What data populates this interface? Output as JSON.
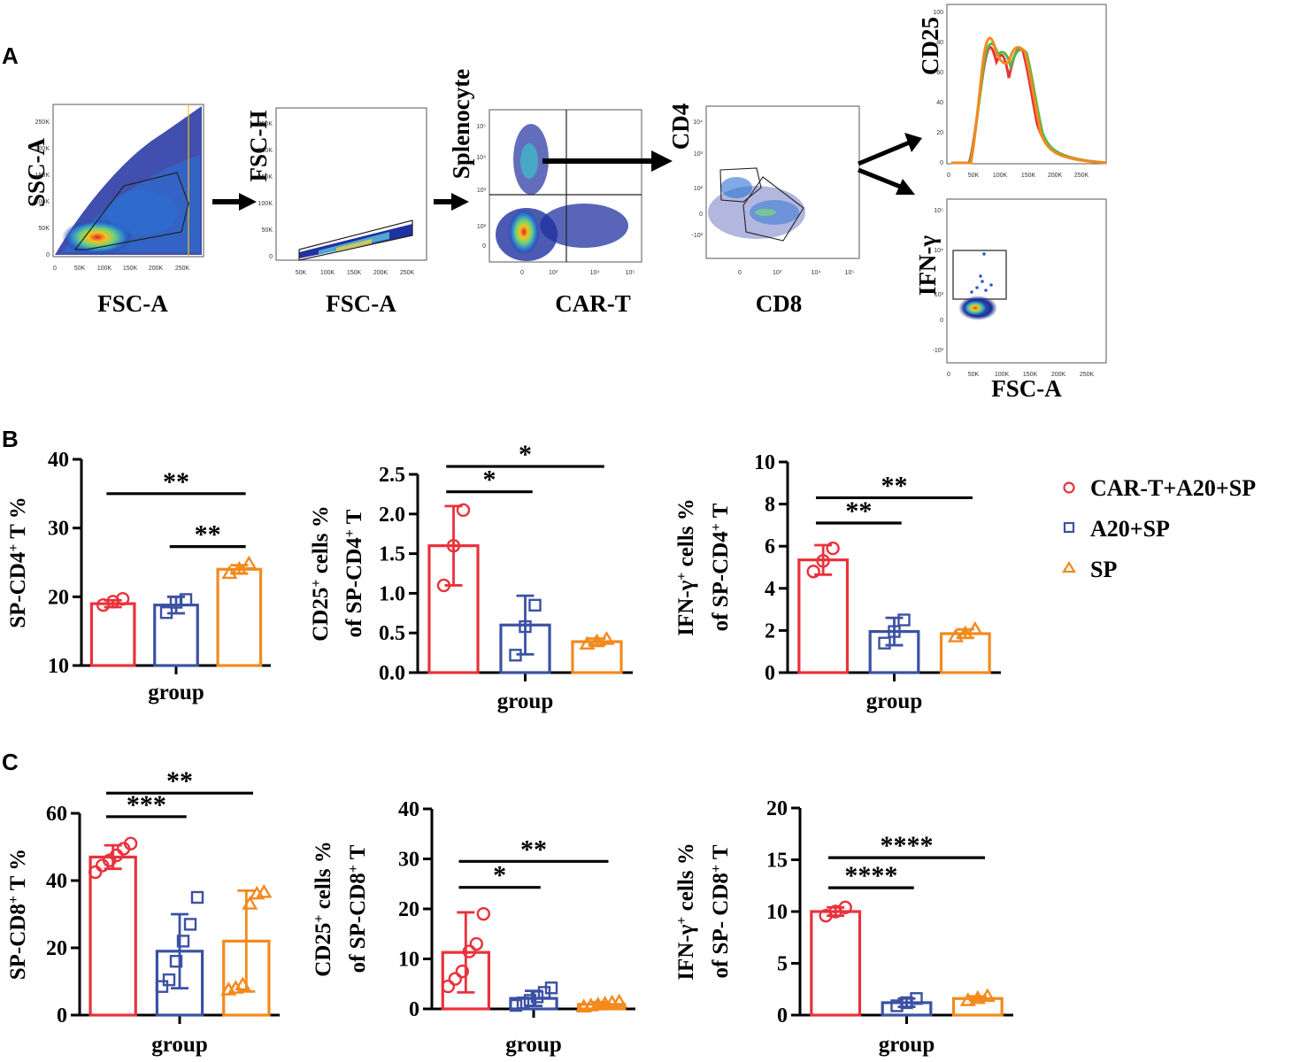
{
  "figure": {
    "panel_a_letter": "A",
    "panel_b_letter": "B",
    "panel_c_letter": "C"
  },
  "flow": {
    "p1": {
      "y_label": "SSC-A",
      "x_label": "FSC-A",
      "x_ticks": [
        "0",
        "50K",
        "100K",
        "150K",
        "200K",
        "250K"
      ],
      "y_ticks": [
        "0",
        "50K",
        "100K",
        "150K",
        "200K",
        "250K"
      ]
    },
    "p2": {
      "y_label": "FSC-H",
      "x_label": "FSC-A",
      "x_ticks": [
        "50K",
        "100K",
        "150K",
        "200K",
        "250K"
      ],
      "y_ticks": [
        "0",
        "50K",
        "100K",
        "150K",
        "200K",
        "250K"
      ]
    },
    "p3": {
      "y_label": "Splenocyte",
      "x_label": "CAR-T",
      "x_ticks": [
        "0",
        "10³",
        "10⁴",
        "10⁵"
      ],
      "y_ticks": [
        "0",
        "10²",
        "10³",
        "10⁴",
        "10⁵"
      ]
    },
    "p4": {
      "y_label": "CD4",
      "x_label": "CD8",
      "x_ticks": [
        "0",
        "10³",
        "10⁴",
        "10⁵"
      ],
      "y_ticks": [
        "-10²",
        "0",
        "10²",
        "10³",
        "10⁴"
      ]
    },
    "p5": {
      "y_label": "CD25",
      "x_ticks": [
        "0",
        "50K",
        "100K",
        "150K",
        "200K",
        "250K"
      ],
      "y_ticks": [
        "0",
        "20",
        "40",
        "60",
        "80",
        "100"
      ]
    },
    "p6": {
      "y_label": "IFN-γ",
      "x_label": "FSC-A",
      "x_ticks": [
        "0",
        "50K",
        "100K",
        "150K",
        "200K",
        "250K"
      ],
      "y_ticks": [
        "-10³",
        "0",
        "10³",
        "10⁴",
        "10⁵"
      ]
    }
  },
  "legend": {
    "items": [
      {
        "label": "CAR-T+A20+SP",
        "color": "#e8323c",
        "marker": "circle"
      },
      {
        "label": "A20+SP",
        "color": "#3b51a3",
        "marker": "square"
      },
      {
        "label": "SP",
        "color": "#f28a1d",
        "marker": "triangle"
      }
    ]
  },
  "chart_data": [
    {
      "id": "B1",
      "type": "bar",
      "xlabel": "group",
      "ylabel_main": "SP-CD4",
      "ylabel_sup": "+",
      "ylabel_tail": " T %",
      "ylim": [
        10,
        40
      ],
      "y_ticks": [
        10,
        20,
        30,
        40
      ],
      "series": [
        {
          "name": "CAR-T+A20+SP",
          "mean": 19.0,
          "sd": 0.5,
          "points": [
            18.8,
            19.3,
            19.7
          ]
        },
        {
          "name": "A20+SP",
          "mean": 18.8,
          "sd": 1.2,
          "points": [
            17.7,
            19.2,
            19.6
          ]
        },
        {
          "name": "SP",
          "mean": 24.0,
          "sd": 0.6,
          "points": [
            23.4,
            24.0,
            24.8
          ]
        }
      ],
      "sig": [
        {
          "from": 0,
          "to": 2,
          "label": "**",
          "level": 35
        },
        {
          "from": 1,
          "to": 2,
          "label": "**",
          "level": 27.3
        }
      ]
    },
    {
      "id": "B2",
      "type": "bar",
      "xlabel": "group",
      "ylabel_main": "CD25",
      "ylabel_sup": "+",
      "ylabel_tail": " cells %",
      "ylabel2_main": "of SP-CD4",
      "ylabel2_sup": "+",
      "ylabel2_tail": " T",
      "ylim": [
        0,
        2.5
      ],
      "y_ticks": [
        0.0,
        0.5,
        1.0,
        1.5,
        2.0,
        2.5
      ],
      "series": [
        {
          "name": "CAR-T+A20+SP",
          "mean": 1.6,
          "sd": 0.5,
          "points": [
            1.1,
            1.6,
            2.05
          ]
        },
        {
          "name": "A20+SP",
          "mean": 0.6,
          "sd": 0.37,
          "points": [
            0.22,
            0.58,
            0.85
          ]
        },
        {
          "name": "SP",
          "mean": 0.39,
          "sd": 0.04,
          "points": [
            0.36,
            0.39,
            0.42
          ]
        }
      ],
      "sig": [
        {
          "from": 0,
          "to": 2,
          "label": "*",
          "level": 2.6
        },
        {
          "from": 0,
          "to": 1,
          "label": "*",
          "level": 2.28
        }
      ]
    },
    {
      "id": "B3",
      "type": "bar",
      "xlabel": "group",
      "ylabel_main": "IFN-γ",
      "ylabel_sup": "+",
      "ylabel_tail": " cells %",
      "ylabel2_main": "of SP-CD4",
      "ylabel2_sup": "+",
      "ylabel2_tail": " T",
      "ylim": [
        0,
        10
      ],
      "y_ticks": [
        0,
        2,
        4,
        6,
        8,
        10
      ],
      "series": [
        {
          "name": "CAR-T+A20+SP",
          "mean": 5.35,
          "sd": 0.7,
          "points": [
            4.8,
            5.3,
            5.9
          ]
        },
        {
          "name": "A20+SP",
          "mean": 1.95,
          "sd": 0.65,
          "points": [
            1.4,
            1.95,
            2.5
          ]
        },
        {
          "name": "SP",
          "mean": 1.85,
          "sd": 0.2,
          "points": [
            1.7,
            1.85,
            2.05
          ]
        }
      ],
      "sig": [
        {
          "from": 0,
          "to": 2,
          "label": "**",
          "level": 8.3
        },
        {
          "from": 0,
          "to": 1,
          "label": "**",
          "level": 7.1
        }
      ]
    },
    {
      "id": "C1",
      "type": "bar",
      "xlabel": "group",
      "ylabel_main": "SP-CD8",
      "ylabel_sup": "+",
      "ylabel_tail": " T %",
      "ylim": [
        0,
        60
      ],
      "y_ticks": [
        0,
        20,
        40,
        60
      ],
      "series": [
        {
          "name": "CAR-T+A20+SP",
          "mean": 47,
          "sd": 3.5,
          "points": [
            42.5,
            44.5,
            46,
            47.5,
            49.5,
            51
          ]
        },
        {
          "name": "A20+SP",
          "mean": 19,
          "sd": 11,
          "points": [
            8.5,
            10.5,
            16,
            22,
            27,
            35
          ]
        },
        {
          "name": "SP",
          "mean": 22,
          "sd": 15,
          "points": [
            7.5,
            8,
            9,
            33,
            36,
            36.5
          ]
        }
      ],
      "sig": [
        {
          "from": 0,
          "to": 2,
          "label": "**",
          "level": 66
        },
        {
          "from": 0,
          "to": 1,
          "label": "***",
          "level": 59
        }
      ]
    },
    {
      "id": "C2",
      "type": "bar",
      "xlabel": "group",
      "ylabel_main": "CD25",
      "ylabel_sup": "+",
      "ylabel_tail": " cells %",
      "ylabel2_main": "of SP-CD8",
      "ylabel2_sup": "+",
      "ylabel2_tail": " T",
      "ylim": [
        0,
        40
      ],
      "y_ticks": [
        0,
        10,
        20,
        30,
        40
      ],
      "series": [
        {
          "name": "CAR-T+A20+SP",
          "mean": 11.3,
          "sd": 8,
          "points": [
            4.5,
            6,
            7.5,
            11.5,
            13,
            19
          ]
        },
        {
          "name": "A20+SP",
          "mean": 2.1,
          "sd": 1.5,
          "points": [
            0.7,
            1.2,
            1.7,
            2.4,
            3.3,
            4.2
          ]
        },
        {
          "name": "SP",
          "mean": 0.9,
          "sd": 0.45,
          "points": [
            0.4,
            0.6,
            0.8,
            1.0,
            1.2,
            1.4
          ]
        }
      ],
      "sig": [
        {
          "from": 0,
          "to": 2,
          "label": "**",
          "level": 29.5
        },
        {
          "from": 0,
          "to": 1,
          "label": "*",
          "level": 24.3
        }
      ]
    },
    {
      "id": "C3",
      "type": "bar",
      "xlabel": "group",
      "ylabel_main": "IFN-γ",
      "ylabel_sup": "+",
      "ylabel_tail": " cells %",
      "ylabel2_main": "of SP- CD8",
      "ylabel2_sup": "+",
      "ylabel2_tail": " T",
      "ylim": [
        0,
        20
      ],
      "y_ticks": [
        0,
        5,
        10,
        15,
        20
      ],
      "series": [
        {
          "name": "CAR-T+A20+SP",
          "mean": 10.0,
          "sd": 0.4,
          "points": [
            9.6,
            10.0,
            10.4
          ]
        },
        {
          "name": "A20+SP",
          "mean": 1.2,
          "sd": 0.4,
          "points": [
            0.9,
            1.2,
            1.6
          ]
        },
        {
          "name": "SP",
          "mean": 1.6,
          "sd": 0.2,
          "points": [
            1.4,
            1.6,
            1.8
          ]
        }
      ],
      "sig": [
        {
          "from": 0,
          "to": 2,
          "label": "****",
          "level": 15.2
        },
        {
          "from": 0,
          "to": 1,
          "label": "****",
          "level": 12.3
        }
      ]
    }
  ]
}
